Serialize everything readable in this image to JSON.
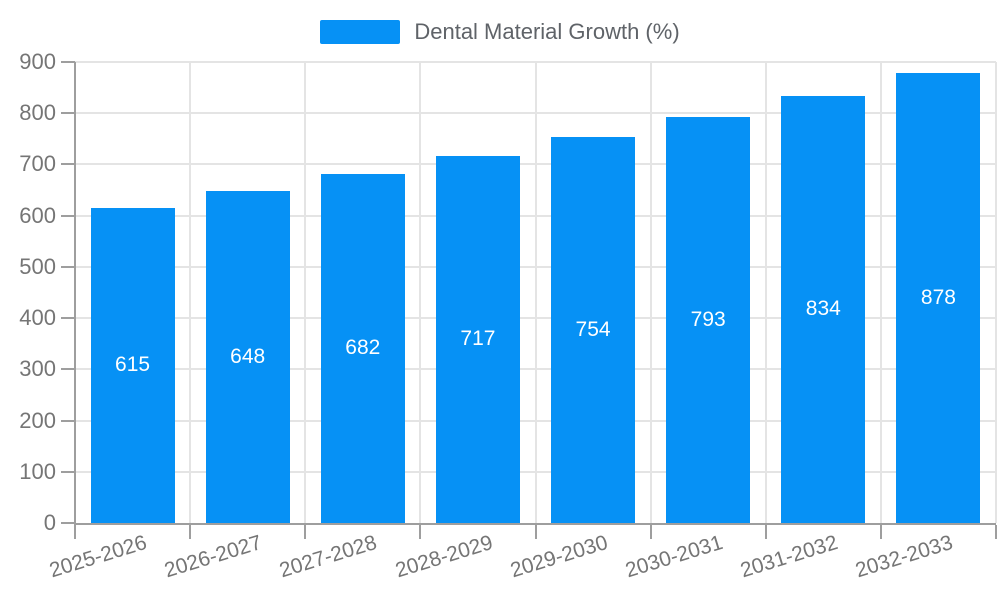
{
  "chart_data": {
    "type": "bar",
    "legend": {
      "label": "Dental Material Growth (%)",
      "position": "top-center"
    },
    "categories": [
      "2025-2026",
      "2026-2027",
      "2027-2028",
      "2028-2029",
      "2029-2030",
      "2030-2031",
      "2031-2032",
      "2032-2033"
    ],
    "series": [
      {
        "name": "Dental Material Growth (%)",
        "values": [
          615,
          648,
          682,
          717,
          754,
          793,
          834,
          878
        ]
      }
    ],
    "value_labels": [
      "615",
      "648",
      "682",
      "717",
      "754",
      "793",
      "834",
      "878"
    ],
    "ylim": [
      0,
      900
    ],
    "ytick_step": 100,
    "ytick_labels": [
      "0",
      "100",
      "200",
      "300",
      "400",
      "500",
      "600",
      "700",
      "800",
      "900"
    ],
    "grid": true,
    "x_label_rotation_deg": -17,
    "colors": {
      "bar": "#0691f5",
      "value_label": "#ffffff",
      "grid": "#e4e4e4",
      "axis": "#9e9e9e",
      "tick_label": "#757575",
      "legend_text": "#5f6368"
    }
  }
}
